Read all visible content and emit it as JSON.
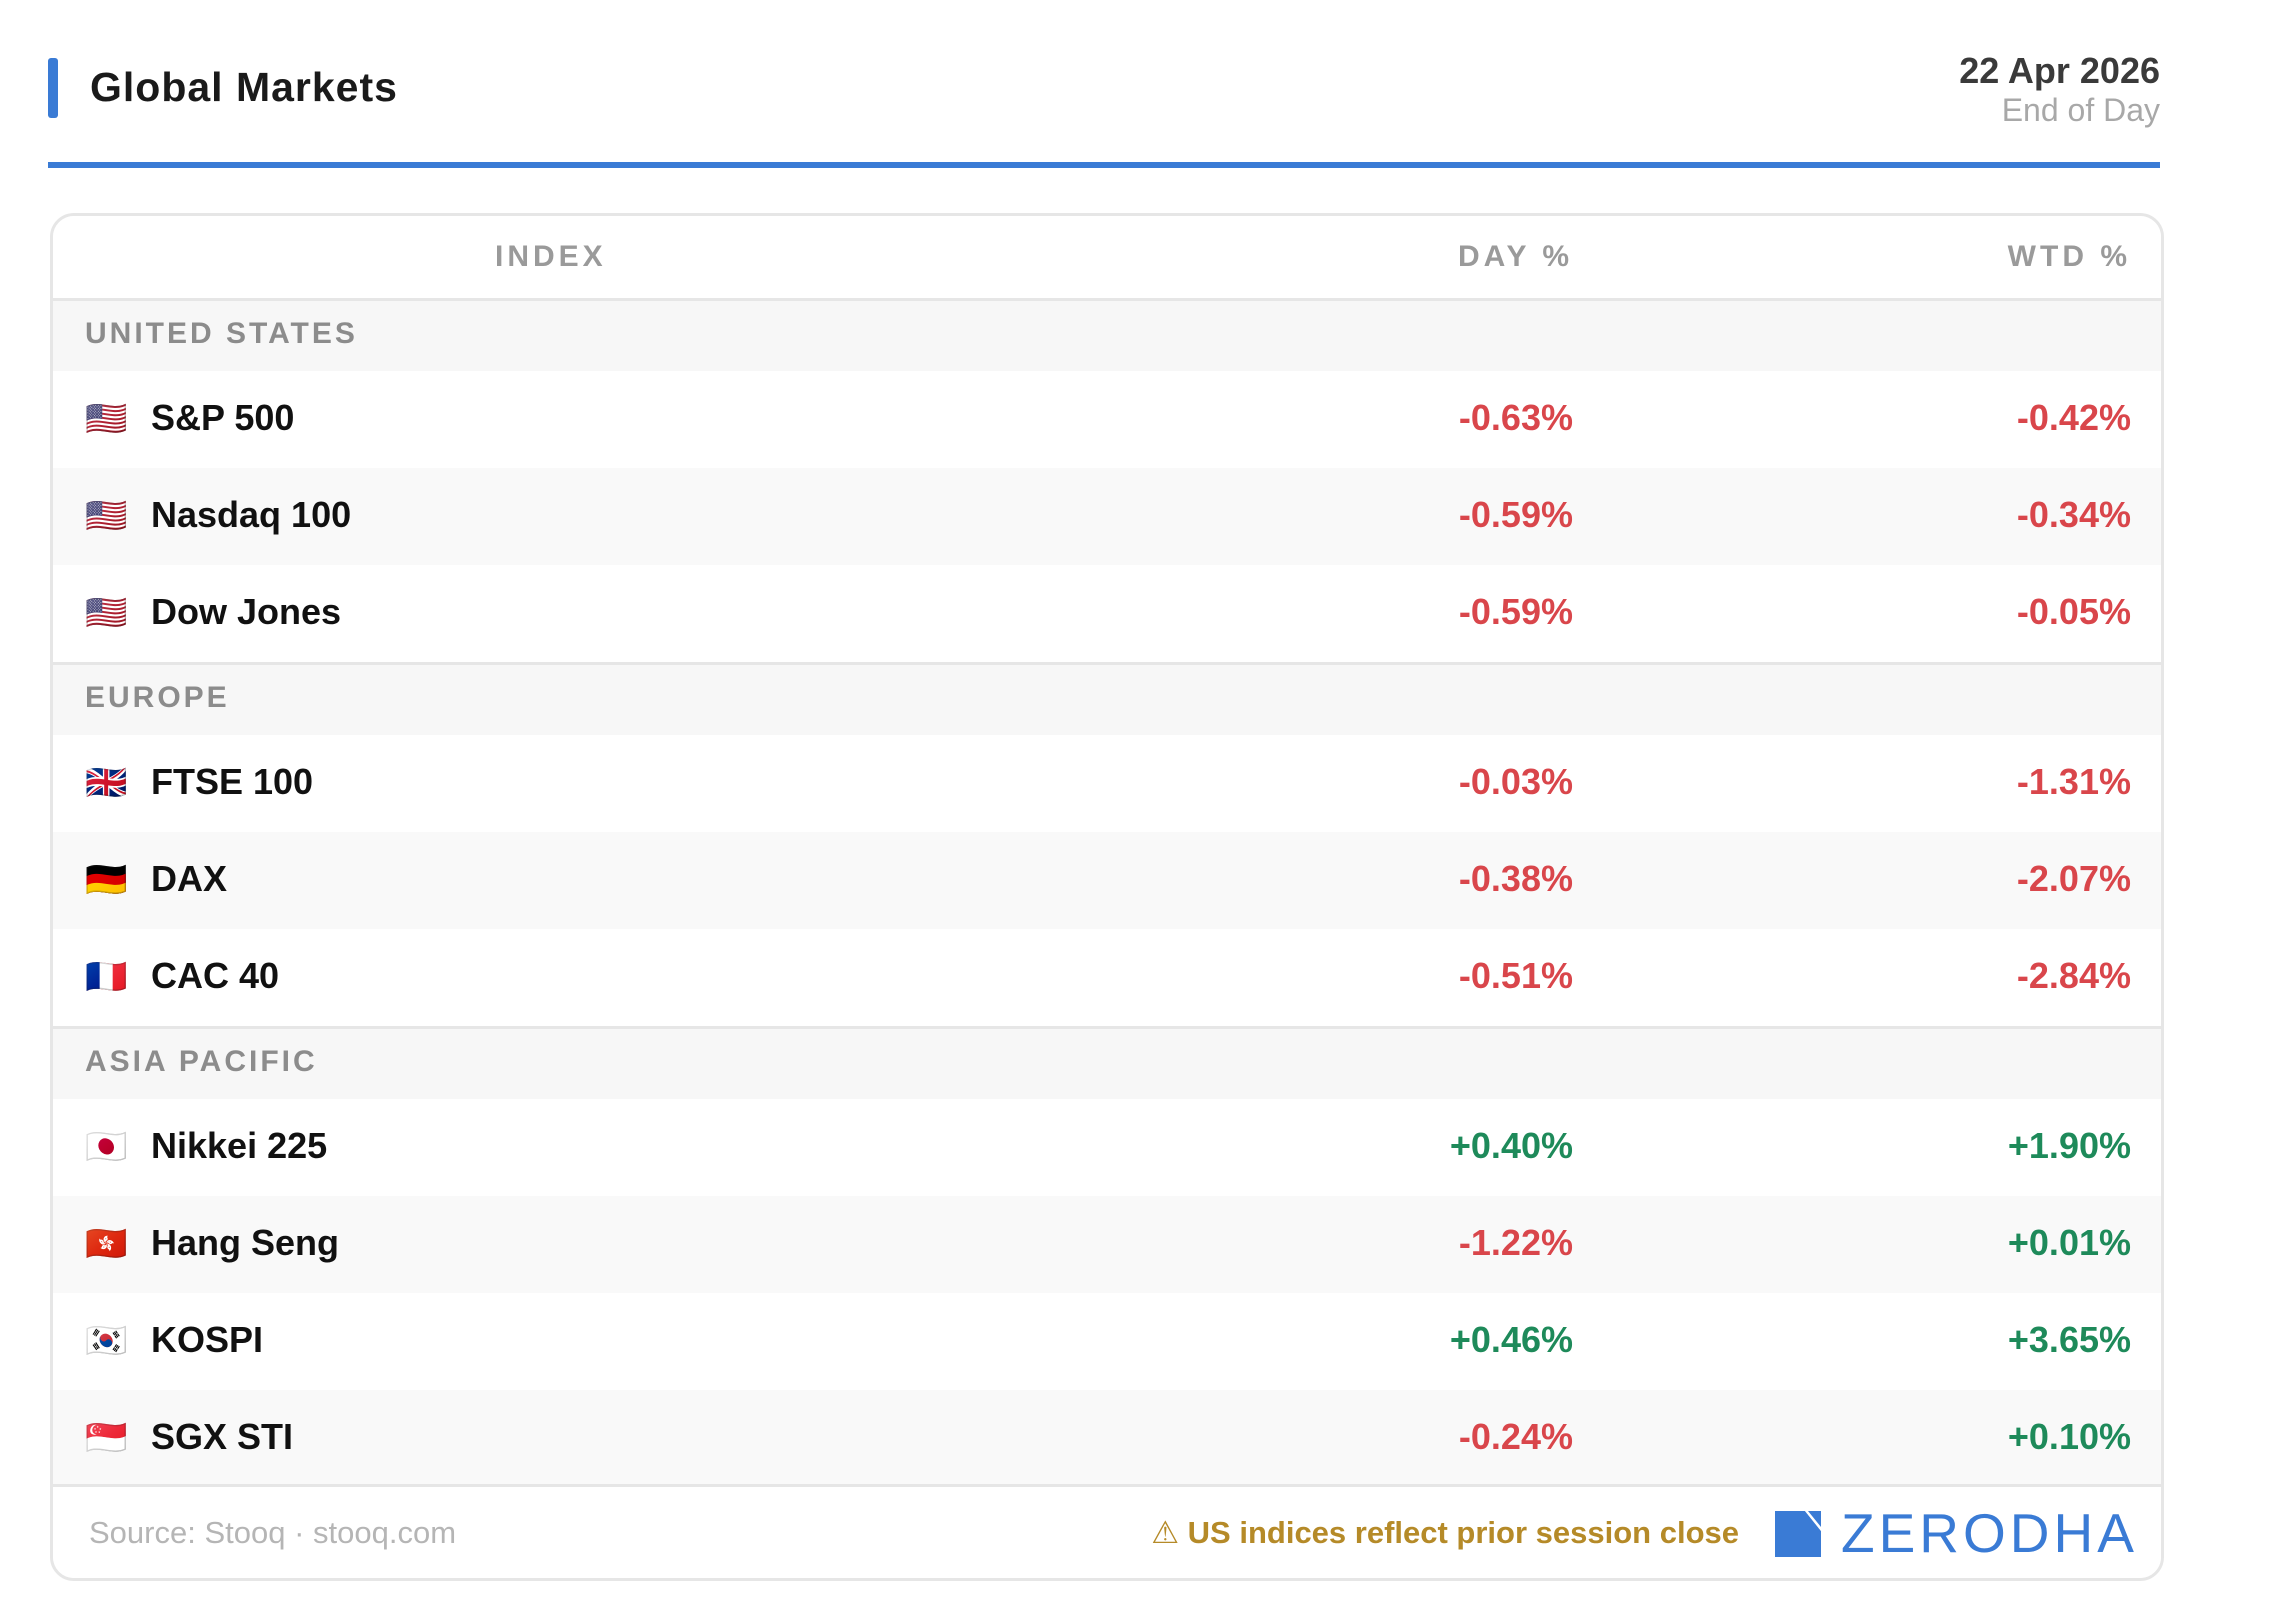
{
  "header": {
    "title": "Global Markets",
    "date": "22 Apr 2026",
    "subtitle": "End of Day",
    "accent_color": "#3a7bd5"
  },
  "table": {
    "columns": {
      "index": "INDEX",
      "day": "DAY %",
      "wtd": "WTD %"
    },
    "sections": [
      {
        "label": "UNITED STATES",
        "rows": [
          {
            "flag": "🇺🇸",
            "name": "S&P 500",
            "day": "-0.63%",
            "wtd": "-0.42%"
          },
          {
            "flag": "🇺🇸",
            "name": "Nasdaq 100",
            "day": "-0.59%",
            "wtd": "-0.34%"
          },
          {
            "flag": "🇺🇸",
            "name": "Dow Jones",
            "day": "-0.59%",
            "wtd": "-0.05%"
          }
        ]
      },
      {
        "label": "EUROPE",
        "rows": [
          {
            "flag": "🇬🇧",
            "name": "FTSE 100",
            "day": "-0.03%",
            "wtd": "-1.31%"
          },
          {
            "flag": "🇩🇪",
            "name": "DAX",
            "day": "-0.38%",
            "wtd": "-2.07%"
          },
          {
            "flag": "🇫🇷",
            "name": "CAC 40",
            "day": "-0.51%",
            "wtd": "-2.84%"
          }
        ]
      },
      {
        "label": "ASIA PACIFIC",
        "rows": [
          {
            "flag": "🇯🇵",
            "name": "Nikkei 225",
            "day": "+0.40%",
            "wtd": "+1.90%"
          },
          {
            "flag": "🇭🇰",
            "name": "Hang Seng",
            "day": "-1.22%",
            "wtd": "+0.01%"
          },
          {
            "flag": "🇰🇷",
            "name": "KOSPI",
            "day": "+0.46%",
            "wtd": "+3.65%"
          },
          {
            "flag": "🇸🇬",
            "name": "SGX STI",
            "day": "-0.24%",
            "wtd": "+0.10%"
          }
        ]
      }
    ]
  },
  "footer": {
    "source": "Source: Stooq · stooq.com",
    "note": "⚠ US indices reflect prior session close",
    "logo_text": "ZERODHA"
  },
  "colors": {
    "negative": "#d9464b",
    "positive": "#1e8a5a",
    "note": "#b58a28"
  }
}
